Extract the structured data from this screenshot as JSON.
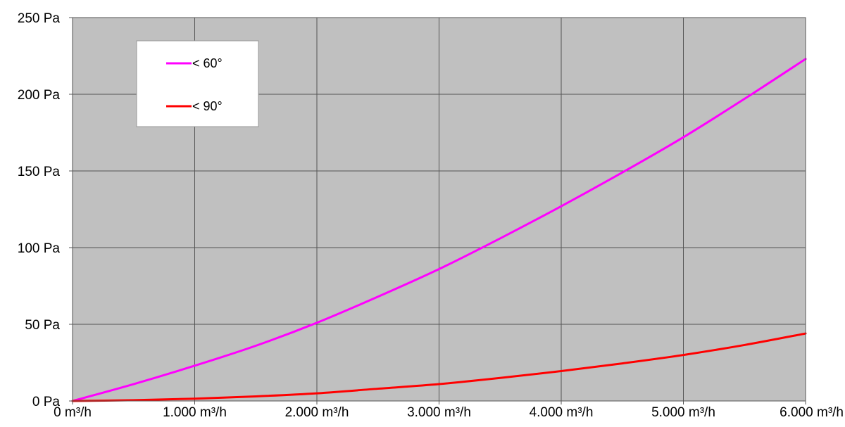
{
  "chart_data": {
    "type": "line",
    "title": "",
    "xlabel": "",
    "ylabel": "",
    "xlim": [
      0,
      6000
    ],
    "ylim": [
      0,
      250
    ],
    "x_ticks": [
      {
        "value": 0,
        "label": "0 m³/h"
      },
      {
        "value": 1000,
        "label": "1.000 m³/h"
      },
      {
        "value": 2000,
        "label": "2.000 m³/h"
      },
      {
        "value": 3000,
        "label": "3.000 m³/h"
      },
      {
        "value": 4000,
        "label": "4.000 m³/h"
      },
      {
        "value": 5000,
        "label": "5.000 m³/h"
      },
      {
        "value": 6000,
        "label": "6.000 m³/h"
      }
    ],
    "y_ticks": [
      {
        "value": 0,
        "label": "0 Pa"
      },
      {
        "value": 50,
        "label": "50 Pa"
      },
      {
        "value": 100,
        "label": "100 Pa"
      },
      {
        "value": 150,
        "label": "150 Pa"
      },
      {
        "value": 200,
        "label": "200 Pa"
      },
      {
        "value": 250,
        "label": "250 Pa"
      }
    ],
    "grid": true,
    "legend_position": "top-left",
    "plot_background": "#c0c0c0",
    "x": [
      0,
      500,
      1000,
      1500,
      2000,
      2500,
      3000,
      3500,
      4000,
      4500,
      5000,
      5500,
      6000
    ],
    "series": [
      {
        "name": "< 60°",
        "color": "#ff00ff",
        "values": [
          0,
          11,
          23,
          36,
          51,
          68,
          86,
          106,
          127,
          149,
          172,
          197,
          223
        ]
      },
      {
        "name": "< 90°",
        "color": "#ff0000",
        "values": [
          0,
          0.5,
          1.5,
          3,
          5,
          8,
          11,
          15,
          19.5,
          24.5,
          30,
          36.5,
          44
        ]
      }
    ]
  }
}
